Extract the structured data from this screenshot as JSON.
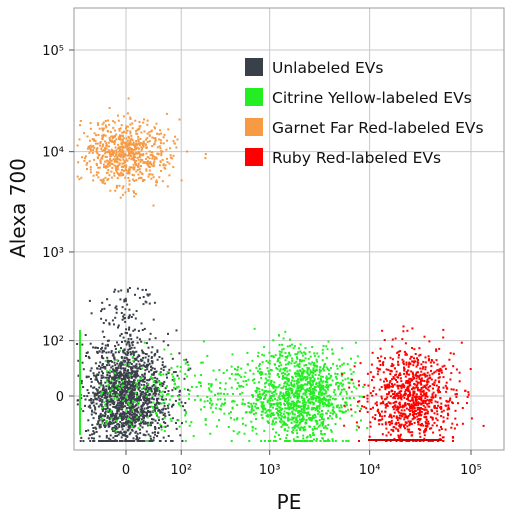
{
  "chart_data": {
    "type": "scatter",
    "xlabel": "PE",
    "ylabel": "Alexa 700",
    "x_scale": "biexponential",
    "y_scale": "biexponential",
    "x_ticks": [
      {
        "value": 0,
        "label": "0"
      },
      {
        "value": 100,
        "label": "10²"
      },
      {
        "value": 1000,
        "label": "10³"
      },
      {
        "value": 10000,
        "label": "10⁴"
      },
      {
        "value": 100000,
        "label": "10⁵"
      }
    ],
    "y_ticks": [
      {
        "value": 0,
        "label": "0"
      },
      {
        "value": 100,
        "label": "10²"
      },
      {
        "value": 1000,
        "label": "10³"
      },
      {
        "value": 10000,
        "label": "10⁴"
      },
      {
        "value": 100000,
        "label": "10⁵"
      }
    ],
    "xlim": [
      -60,
      250000
    ],
    "ylim": [
      -60,
      250000
    ],
    "grid": true,
    "legend_position": "top-right",
    "series": [
      {
        "name": "Unlabeled EVs",
        "color": "#3a4049",
        "center_x": 0,
        "center_y": 0,
        "spread_x": 60,
        "spread_y": 60
      },
      {
        "name": "Citrine Yellow-labeled EVs",
        "color": "#22ee22",
        "center_x": 2000,
        "center_y": 0,
        "spread_x": 1500,
        "spread_y": 60
      },
      {
        "name": "Garnet Far Red-labeled EVs",
        "color": "#f79a44",
        "center_x": 0,
        "center_y": 10000,
        "spread_x": 60,
        "spread_y": 6000
      },
      {
        "name": "Ruby Red-labeled EVs",
        "color": "#ff0000",
        "center_x": 25000,
        "center_y": 0,
        "spread_x": 15000,
        "spread_y": 60
      }
    ]
  }
}
